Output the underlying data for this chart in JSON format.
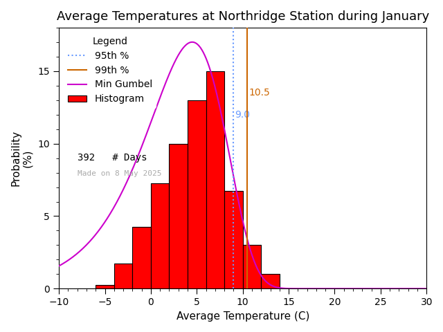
{
  "title": "Average Temperatures at Northridge Station during January",
  "xlabel": "Average Temperature (C)",
  "ylabel": "Probability\n(%)",
  "xlim": [
    -10,
    30
  ],
  "ylim": [
    0,
    18
  ],
  "xticks": [
    -10,
    -5,
    0,
    5,
    10,
    15,
    20,
    25,
    30
  ],
  "yticks": [
    0,
    5,
    10,
    15
  ],
  "bar_edges": [
    -8,
    -6,
    -4,
    -2,
    0,
    2,
    4,
    6,
    8,
    10,
    12,
    14,
    16
  ],
  "bar_heights": [
    0.0,
    0.25,
    1.75,
    4.25,
    7.25,
    10.0,
    13.0,
    15.0,
    6.75,
    3.0,
    1.0,
    0.0
  ],
  "bar_color": "#ff0000",
  "bar_edgecolor": "#000000",
  "percentile_95": 9.0,
  "percentile_99": 10.5,
  "percentile_95_color": "#6699ff",
  "percentile_99_color": "#cc6600",
  "percentile_95_label": "95th %",
  "percentile_99_label": "99th %",
  "gumbel_color": "#cc00cc",
  "gumbel_label": "Min Gumbel",
  "histogram_label": "Histogram",
  "ndays": 392,
  "ndays_label": "# Days",
  "made_on_text": "Made on 8 May 2025",
  "made_on_color": "#aaaaaa",
  "legend_title": "Legend",
  "background_color": "#ffffff",
  "title_fontsize": 13,
  "label_fontsize": 11,
  "tick_fontsize": 10,
  "legend_fontsize": 10
}
